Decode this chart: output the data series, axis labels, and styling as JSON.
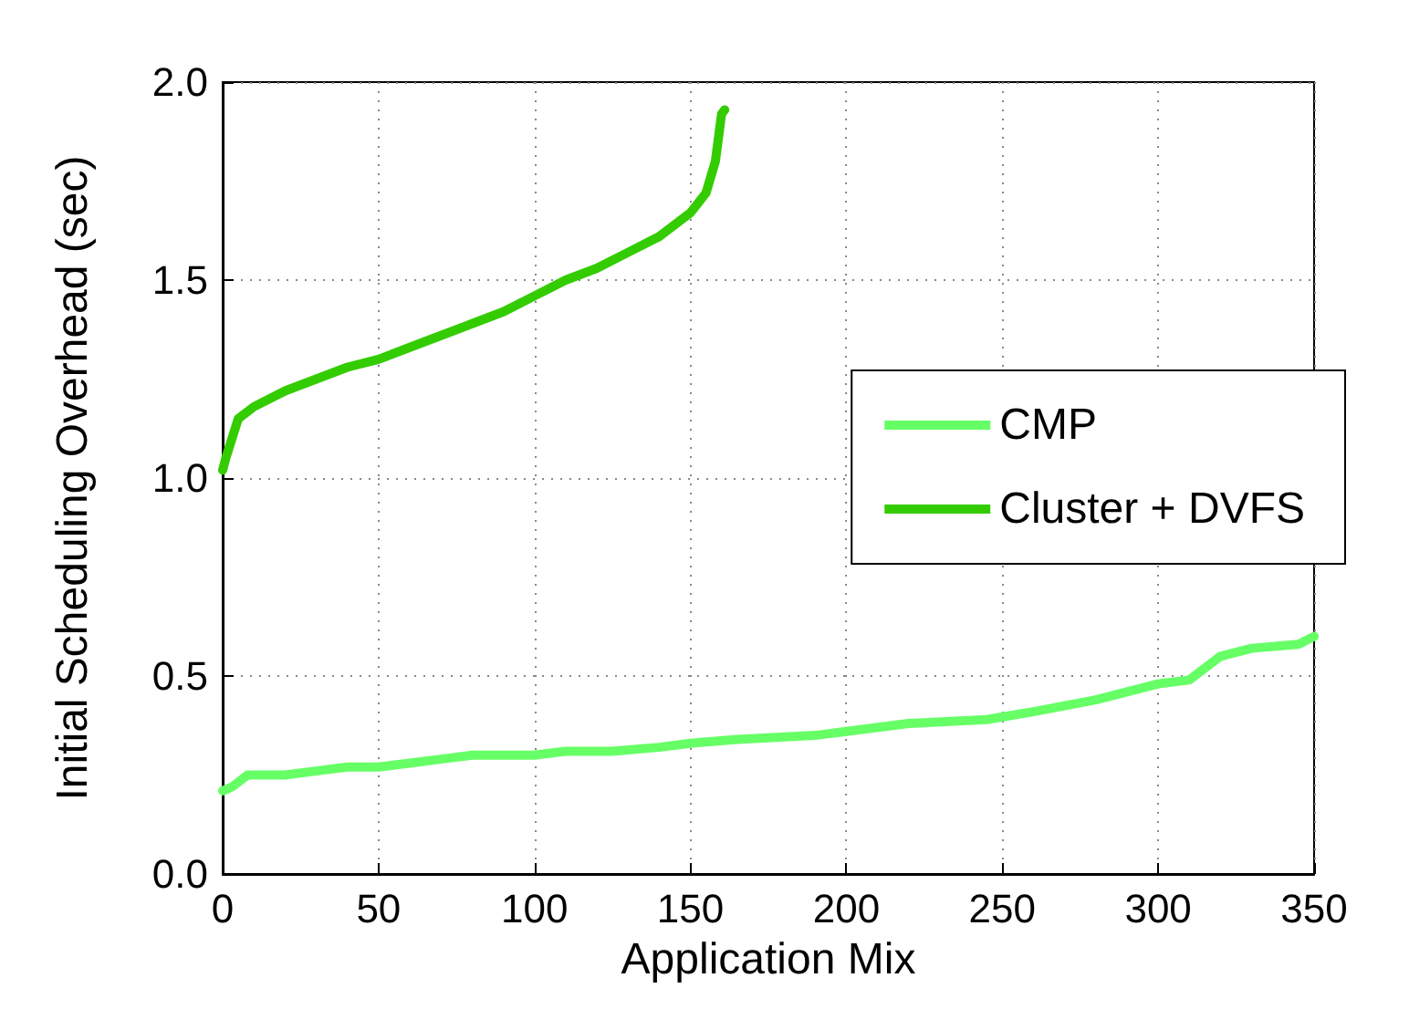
{
  "chart_data": {
    "type": "line",
    "xlabel": "Application Mix",
    "ylabel": "Initial Scheduling Overhead (sec)",
    "xlim": [
      0,
      350
    ],
    "xticks": [
      0,
      50,
      100,
      150,
      200,
      250,
      300,
      350
    ],
    "ylim": [
      0,
      2
    ],
    "yticks": [
      {
        "value": 0,
        "label": "0.0"
      },
      {
        "value": 0.5,
        "label": "0.5"
      },
      {
        "value": 1,
        "label": "1.0"
      },
      {
        "value": 1.5,
        "label": "1.5"
      },
      {
        "value": 2,
        "label": "2.0"
      }
    ],
    "grid": true,
    "legend": "right",
    "marker": "none",
    "line_style": "solid",
    "series": [
      {
        "name": "CMP",
        "color": "#66ff66",
        "x": [
          0,
          3,
          8,
          20,
          30,
          40,
          50,
          60,
          70,
          80,
          100,
          110,
          125,
          140,
          150,
          165,
          190,
          200,
          220,
          245,
          260,
          280,
          290,
          300,
          310,
          315,
          320,
          330,
          345,
          350
        ],
        "values": [
          0.21,
          0.22,
          0.25,
          0.25,
          0.26,
          0.27,
          0.27,
          0.28,
          0.29,
          0.3,
          0.3,
          0.31,
          0.31,
          0.32,
          0.33,
          0.34,
          0.35,
          0.36,
          0.38,
          0.39,
          0.41,
          0.44,
          0.46,
          0.48,
          0.49,
          0.52,
          0.55,
          0.57,
          0.58,
          0.6
        ]
      },
      {
        "name": "Cluster + DVFS",
        "color": "#33cc00",
        "x": [
          0,
          1,
          3,
          5,
          10,
          20,
          30,
          40,
          50,
          60,
          70,
          80,
          90,
          100,
          110,
          120,
          130,
          140,
          150,
          155,
          158,
          160,
          161
        ],
        "values": [
          1.02,
          1.05,
          1.1,
          1.15,
          1.18,
          1.22,
          1.25,
          1.28,
          1.3,
          1.33,
          1.36,
          1.39,
          1.42,
          1.46,
          1.5,
          1.53,
          1.57,
          1.61,
          1.67,
          1.72,
          1.8,
          1.92,
          1.93
        ]
      }
    ]
  }
}
